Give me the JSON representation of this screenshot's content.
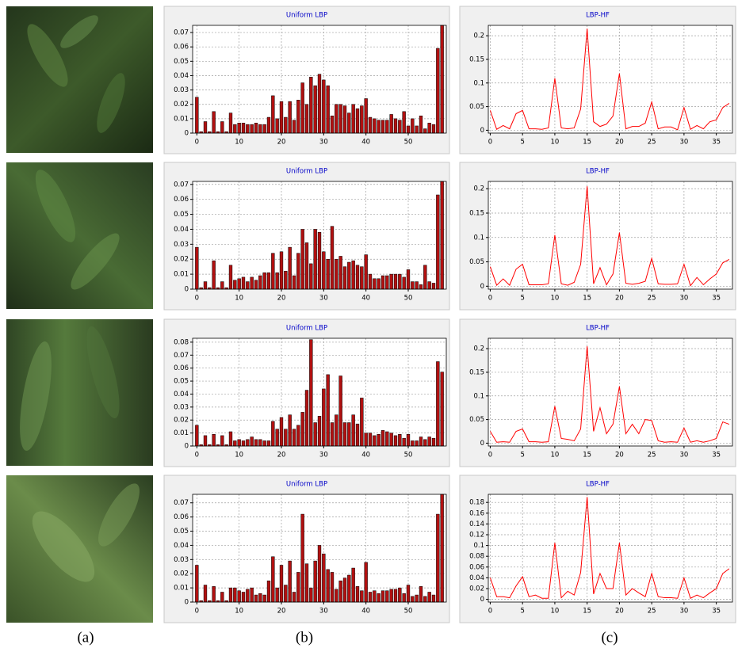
{
  "captions": [
    "(a)",
    "(b)",
    "(c)"
  ],
  "chart_data": [
    {
      "type": "bar",
      "title": "Uniform LBP",
      "color": "#b01010",
      "grid": true,
      "x": [
        0,
        1,
        2,
        3,
        4,
        5,
        6,
        7,
        8,
        9,
        10,
        11,
        12,
        13,
        14,
        15,
        16,
        17,
        18,
        19,
        20,
        21,
        22,
        23,
        24,
        25,
        26,
        27,
        28,
        29,
        30,
        31,
        32,
        33,
        34,
        35,
        36,
        37,
        38,
        39,
        40,
        41,
        42,
        43,
        44,
        45,
        46,
        47,
        48,
        49,
        50,
        51,
        52,
        53,
        54,
        55,
        56,
        57,
        58
      ],
      "values": [
        0.025,
        0.001,
        0.008,
        0.001,
        0.015,
        0.001,
        0.008,
        0.001,
        0.014,
        0.006,
        0.007,
        0.007,
        0.006,
        0.006,
        0.007,
        0.006,
        0.006,
        0.011,
        0.026,
        0.01,
        0.022,
        0.011,
        0.022,
        0.009,
        0.023,
        0.035,
        0.02,
        0.039,
        0.033,
        0.041,
        0.037,
        0.033,
        0.012,
        0.02,
        0.02,
        0.019,
        0.014,
        0.02,
        0.017,
        0.019,
        0.024,
        0.011,
        0.01,
        0.009,
        0.009,
        0.009,
        0.013,
        0.01,
        0.009,
        0.015,
        0.005,
        0.01,
        0.005,
        0.012,
        0.003,
        0.007,
        0.006,
        0.059,
        0.075
      ],
      "xlim": [
        -1,
        59
      ],
      "xticks": [
        0,
        10,
        20,
        30,
        40,
        50
      ],
      "ylim": [
        0,
        0.075
      ],
      "yticks": [
        0,
        0.01,
        0.02,
        0.03,
        0.04,
        0.05,
        0.06,
        0.07
      ]
    },
    {
      "type": "line",
      "title": "LBP-HF",
      "color": "#ff0000",
      "grid": true,
      "x": [
        0,
        1,
        2,
        3,
        4,
        5,
        6,
        7,
        8,
        9,
        10,
        11,
        12,
        13,
        14,
        15,
        16,
        17,
        18,
        19,
        20,
        21,
        22,
        23,
        24,
        25,
        26,
        27,
        28,
        29,
        30,
        31,
        32,
        33,
        34,
        35,
        36,
        37
      ],
      "values": [
        0.042,
        0.002,
        0.01,
        0.003,
        0.035,
        0.042,
        0.003,
        0.003,
        0.002,
        0.005,
        0.11,
        0.005,
        0.003,
        0.005,
        0.045,
        0.215,
        0.018,
        0.008,
        0.013,
        0.03,
        0.12,
        0.003,
        0.008,
        0.008,
        0.015,
        0.06,
        0.003,
        0.007,
        0.007,
        0.001,
        0.048,
        0.002,
        0.01,
        0.003,
        0.018,
        0.022,
        0.048,
        0.057
      ],
      "xlim": [
        -0.3,
        37.5
      ],
      "xticks": [
        0,
        5,
        10,
        15,
        20,
        25,
        30,
        35
      ],
      "ylim": [
        -0.006,
        0.222
      ],
      "yticks": [
        0,
        0.05,
        0.1,
        0.15,
        0.2
      ]
    },
    {
      "type": "bar",
      "title": "Uniform LBP",
      "color": "#b01010",
      "grid": true,
      "x": [
        0,
        1,
        2,
        3,
        4,
        5,
        6,
        7,
        8,
        9,
        10,
        11,
        12,
        13,
        14,
        15,
        16,
        17,
        18,
        19,
        20,
        21,
        22,
        23,
        24,
        25,
        26,
        27,
        28,
        29,
        30,
        31,
        32,
        33,
        34,
        35,
        36,
        37,
        38,
        39,
        40,
        41,
        42,
        43,
        44,
        45,
        46,
        47,
        48,
        49,
        50,
        51,
        52,
        53,
        54,
        55,
        56,
        57,
        58
      ],
      "values": [
        0.028,
        0.001,
        0.005,
        0.001,
        0.019,
        0.001,
        0.005,
        0.001,
        0.016,
        0.006,
        0.007,
        0.008,
        0.005,
        0.008,
        0.006,
        0.009,
        0.011,
        0.011,
        0.024,
        0.011,
        0.025,
        0.012,
        0.028,
        0.009,
        0.024,
        0.04,
        0.031,
        0.017,
        0.04,
        0.038,
        0.025,
        0.02,
        0.042,
        0.02,
        0.022,
        0.015,
        0.018,
        0.019,
        0.016,
        0.015,
        0.023,
        0.01,
        0.007,
        0.007,
        0.009,
        0.009,
        0.01,
        0.01,
        0.01,
        0.008,
        0.013,
        0.005,
        0.005,
        0.003,
        0.016,
        0.005,
        0.004,
        0.063,
        0.072
      ],
      "xlim": [
        -1,
        59
      ],
      "xticks": [
        0,
        10,
        20,
        30,
        40,
        50
      ],
      "ylim": [
        0,
        0.072
      ],
      "yticks": [
        0,
        0.01,
        0.02,
        0.03,
        0.04,
        0.05,
        0.06,
        0.07
      ]
    },
    {
      "type": "line",
      "title": "LBP-HF",
      "color": "#ff0000",
      "grid": true,
      "x": [
        0,
        1,
        2,
        3,
        4,
        5,
        6,
        7,
        8,
        9,
        10,
        11,
        12,
        13,
        14,
        15,
        16,
        17,
        18,
        19,
        20,
        21,
        22,
        23,
        24,
        25,
        26,
        27,
        28,
        29,
        30,
        31,
        32,
        33,
        34,
        35,
        36,
        37
      ],
      "values": [
        0.04,
        0.002,
        0.015,
        0.002,
        0.035,
        0.045,
        0.003,
        0.003,
        0.003,
        0.005,
        0.105,
        0.005,
        0.002,
        0.008,
        0.045,
        0.205,
        0.005,
        0.038,
        0.003,
        0.025,
        0.11,
        0.006,
        0.004,
        0.006,
        0.01,
        0.057,
        0.005,
        0.004,
        0.004,
        0.005,
        0.045,
        0.001,
        0.018,
        0.003,
        0.015,
        0.025,
        0.048,
        0.055
      ],
      "xlim": [
        -0.3,
        37.5
      ],
      "xticks": [
        0,
        5,
        10,
        15,
        20,
        25,
        30,
        35
      ],
      "ylim": [
        -0.006,
        0.215
      ],
      "yticks": [
        0,
        0.05,
        0.1,
        0.15,
        0.2
      ]
    },
    {
      "type": "bar",
      "title": "Uniform LBP",
      "color": "#b01010",
      "grid": true,
      "x": [
        0,
        1,
        2,
        3,
        4,
        5,
        6,
        7,
        8,
        9,
        10,
        11,
        12,
        13,
        14,
        15,
        16,
        17,
        18,
        19,
        20,
        21,
        22,
        23,
        24,
        25,
        26,
        27,
        28,
        29,
        30,
        31,
        32,
        33,
        34,
        35,
        36,
        37,
        38,
        39,
        40,
        41,
        42,
        43,
        44,
        45,
        46,
        47,
        48,
        49,
        50,
        51,
        52,
        53,
        54,
        55,
        56,
        57,
        58
      ],
      "values": [
        0.016,
        0.001,
        0.008,
        0.001,
        0.009,
        0.001,
        0.008,
        0.001,
        0.011,
        0.004,
        0.005,
        0.004,
        0.005,
        0.007,
        0.005,
        0.005,
        0.004,
        0.004,
        0.019,
        0.013,
        0.022,
        0.013,
        0.024,
        0.013,
        0.016,
        0.026,
        0.043,
        0.082,
        0.018,
        0.023,
        0.044,
        0.055,
        0.018,
        0.024,
        0.054,
        0.018,
        0.018,
        0.024,
        0.017,
        0.037,
        0.01,
        0.01,
        0.008,
        0.009,
        0.012,
        0.011,
        0.01,
        0.008,
        0.009,
        0.006,
        0.009,
        0.004,
        0.004,
        0.007,
        0.005,
        0.007,
        0.006,
        0.065,
        0.057
      ],
      "xlim": [
        -1,
        59
      ],
      "xticks": [
        0,
        10,
        20,
        30,
        40,
        50
      ],
      "ylim": [
        0,
        0.083
      ],
      "yticks": [
        0,
        0.01,
        0.02,
        0.03,
        0.04,
        0.05,
        0.06,
        0.07,
        0.08
      ]
    },
    {
      "type": "line",
      "title": "LBP-HF",
      "color": "#ff0000",
      "grid": true,
      "x": [
        0,
        1,
        2,
        3,
        4,
        5,
        6,
        7,
        8,
        9,
        10,
        11,
        12,
        13,
        14,
        15,
        16,
        17,
        18,
        19,
        20,
        21,
        22,
        23,
        24,
        25,
        26,
        27,
        28,
        29,
        30,
        31,
        32,
        33,
        34,
        35,
        36,
        37
      ],
      "values": [
        0.025,
        0.002,
        0.003,
        0.002,
        0.025,
        0.03,
        0.003,
        0.003,
        0.002,
        0.003,
        0.078,
        0.01,
        0.008,
        0.005,
        0.03,
        0.205,
        0.025,
        0.075,
        0.02,
        0.04,
        0.12,
        0.02,
        0.04,
        0.02,
        0.05,
        0.048,
        0.005,
        0.002,
        0.003,
        0.002,
        0.032,
        0.002,
        0.005,
        0.002,
        0.005,
        0.01,
        0.045,
        0.04
      ],
      "xlim": [
        -0.3,
        37.5
      ],
      "xticks": [
        0,
        5,
        10,
        15,
        20,
        25,
        30,
        35
      ],
      "ylim": [
        -0.006,
        0.222
      ],
      "yticks": [
        0,
        0.05,
        0.1,
        0.15,
        0.2
      ]
    },
    {
      "type": "bar",
      "title": "Uniform LBP",
      "color": "#b01010",
      "grid": true,
      "x": [
        0,
        1,
        2,
        3,
        4,
        5,
        6,
        7,
        8,
        9,
        10,
        11,
        12,
        13,
        14,
        15,
        16,
        17,
        18,
        19,
        20,
        21,
        22,
        23,
        24,
        25,
        26,
        27,
        28,
        29,
        30,
        31,
        32,
        33,
        34,
        35,
        36,
        37,
        38,
        39,
        40,
        41,
        42,
        43,
        44,
        45,
        46,
        47,
        48,
        49,
        50,
        51,
        52,
        53,
        54,
        55,
        56,
        57,
        58
      ],
      "values": [
        0.026,
        0.001,
        0.012,
        0.001,
        0.011,
        0.001,
        0.007,
        0.001,
        0.01,
        0.01,
        0.008,
        0.007,
        0.009,
        0.01,
        0.005,
        0.006,
        0.005,
        0.015,
        0.032,
        0.01,
        0.026,
        0.012,
        0.029,
        0.007,
        0.021,
        0.062,
        0.027,
        0.01,
        0.029,
        0.04,
        0.034,
        0.023,
        0.021,
        0.009,
        0.015,
        0.017,
        0.019,
        0.024,
        0.011,
        0.008,
        0.028,
        0.007,
        0.008,
        0.006,
        0.008,
        0.008,
        0.009,
        0.009,
        0.01,
        0.006,
        0.012,
        0.004,
        0.005,
        0.011,
        0.004,
        0.007,
        0.005,
        0.062,
        0.076
      ],
      "xlim": [
        -1,
        59
      ],
      "xticks": [
        0,
        10,
        20,
        30,
        40,
        50
      ],
      "ylim": [
        0,
        0.076
      ],
      "yticks": [
        0,
        0.01,
        0.02,
        0.03,
        0.04,
        0.05,
        0.06,
        0.07
      ]
    },
    {
      "type": "line",
      "title": "LBP-HF",
      "color": "#ff0000",
      "grid": true,
      "x": [
        0,
        1,
        2,
        3,
        4,
        5,
        6,
        7,
        8,
        9,
        10,
        11,
        12,
        13,
        14,
        15,
        16,
        17,
        18,
        19,
        20,
        21,
        22,
        23,
        24,
        25,
        26,
        27,
        28,
        29,
        30,
        31,
        32,
        33,
        34,
        35,
        36,
        37
      ],
      "values": [
        0.04,
        0.005,
        0.005,
        0.003,
        0.025,
        0.042,
        0.005,
        0.008,
        0.002,
        0.002,
        0.105,
        0.003,
        0.015,
        0.008,
        0.05,
        0.19,
        0.01,
        0.048,
        0.02,
        0.02,
        0.105,
        0.008,
        0.02,
        0.012,
        0.005,
        0.048,
        0.005,
        0.003,
        0.003,
        0.002,
        0.04,
        0.002,
        0.008,
        0.003,
        0.012,
        0.02,
        0.048,
        0.057
      ],
      "xlim": [
        -0.3,
        37.5
      ],
      "xticks": [
        0,
        5,
        10,
        15,
        20,
        25,
        30,
        35
      ],
      "ylim": [
        -0.005,
        0.195
      ],
      "yticks": [
        0,
        0.02,
        0.04,
        0.06,
        0.08,
        0.1,
        0.12,
        0.14,
        0.16,
        0.18
      ]
    }
  ]
}
